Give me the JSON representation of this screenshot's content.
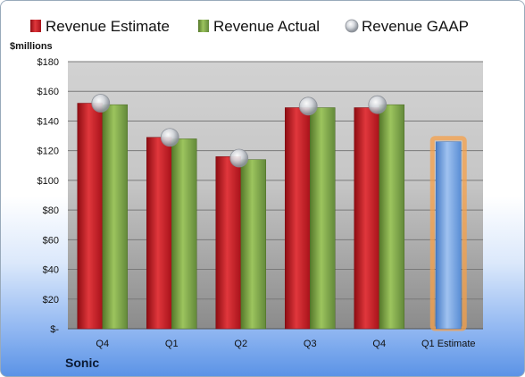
{
  "chart_data": {
    "type": "bar",
    "title": "",
    "ylabel": "$millions",
    "company": "Sonic",
    "categories": [
      "Q4",
      "Q1",
      "Q2",
      "Q3",
      "Q4",
      "Q1 Estimate"
    ],
    "ylim": [
      0,
      180
    ],
    "yticks": [
      0,
      20,
      40,
      60,
      80,
      100,
      120,
      140,
      160,
      180
    ],
    "ytick_labels": [
      "$-",
      "$20",
      "$40",
      "$60",
      "$80",
      "$100",
      "$120",
      "$140",
      "$160",
      "$180"
    ],
    "grid": true,
    "legend_position": "top",
    "series": [
      {
        "name": "Revenue Estimate",
        "type": "bar",
        "color": "#c8141e",
        "values": [
          152,
          129,
          116,
          149,
          149,
          null
        ]
      },
      {
        "name": "Revenue Actual",
        "type": "bar",
        "color": "#76a03c",
        "values": [
          151,
          128,
          114,
          149,
          151,
          null
        ]
      },
      {
        "name": "Revenue GAAP",
        "type": "marker",
        "color": "#b8bcc4",
        "values": [
          152,
          129,
          115,
          150,
          151,
          null
        ]
      },
      {
        "name": "Q1 Estimate",
        "type": "bar",
        "color": "#6d9ee0",
        "highlight": "#f5a04a",
        "values": [
          null,
          null,
          null,
          null,
          null,
          126
        ],
        "in_legend": false
      }
    ]
  }
}
